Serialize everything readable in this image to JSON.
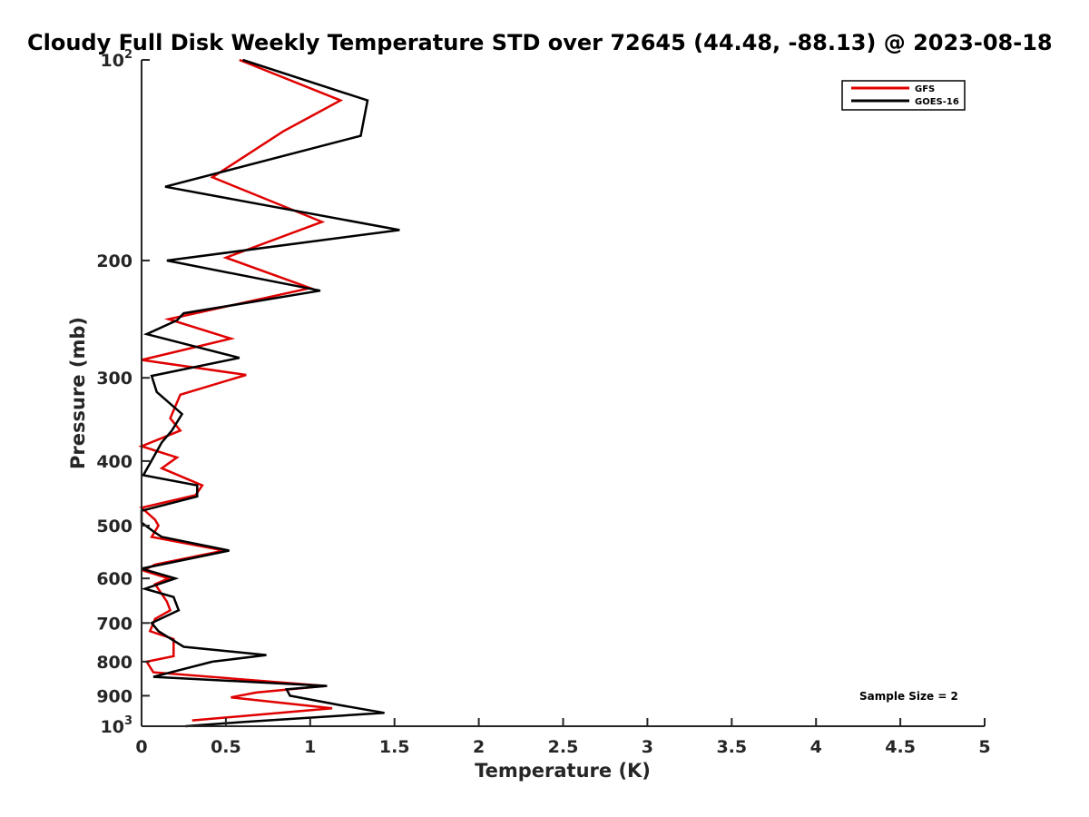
{
  "chart_data": {
    "type": "line",
    "title": "Cloudy Full Disk Weekly Temperature STD over 72645 (44.48, -88.13) @ 2023-08-18",
    "xlabel": "Temperature (K)",
    "ylabel": "Pressure (mb)",
    "xlim": [
      0,
      5
    ],
    "ylim": [
      100,
      1000
    ],
    "y_scale": "log",
    "y_reversed": true,
    "x_ticks": [
      "0",
      "0.5",
      "1",
      "1.5",
      "2",
      "2.5",
      "3",
      "3.5",
      "4",
      "4.5",
      "5"
    ],
    "y_ticks": [
      {
        "value": 100,
        "base": "10",
        "exp": "2"
      },
      {
        "value": 200,
        "label": "200"
      },
      {
        "value": 300,
        "label": "300"
      },
      {
        "value": 400,
        "label": "400"
      },
      {
        "value": 500,
        "label": "500"
      },
      {
        "value": 600,
        "label": "600"
      },
      {
        "value": 700,
        "label": "700"
      },
      {
        "value": 800,
        "label": "800"
      },
      {
        "value": 900,
        "label": "900"
      },
      {
        "value": 1000,
        "base": "10",
        "exp": "3"
      }
    ],
    "legend_position": "top-right",
    "annotation": "Sample Size = 2",
    "series": [
      {
        "name": "GFS",
        "color": "#e00000",
        "points": [
          [
            0.58,
            100
          ],
          [
            1.18,
            115
          ],
          [
            0.84,
            128
          ],
          [
            0.42,
            150
          ],
          [
            1.07,
            175
          ],
          [
            0.5,
            198
          ],
          [
            1.0,
            220
          ],
          [
            0.16,
            245
          ],
          [
            0.53,
            262
          ],
          [
            0.0,
            282
          ],
          [
            0.62,
            297
          ],
          [
            0.23,
            318
          ],
          [
            0.17,
            345
          ],
          [
            0.23,
            360
          ],
          [
            0.0,
            380
          ],
          [
            0.21,
            395
          ],
          [
            0.12,
            410
          ],
          [
            0.36,
            435
          ],
          [
            0.32,
            450
          ],
          [
            0.0,
            470
          ],
          [
            0.08,
            490
          ],
          [
            0.1,
            500
          ],
          [
            0.06,
            520
          ],
          [
            0.49,
            545
          ],
          [
            0.08,
            572
          ],
          [
            0.01,
            584
          ],
          [
            0.16,
            600
          ],
          [
            0.08,
            612
          ],
          [
            0.15,
            650
          ],
          [
            0.17,
            670
          ],
          [
            0.08,
            690
          ],
          [
            0.05,
            720
          ],
          [
            0.19,
            740
          ],
          [
            0.19,
            785
          ],
          [
            0.03,
            800
          ],
          [
            0.05,
            815
          ],
          [
            0.07,
            830
          ],
          [
            1.09,
            870
          ],
          [
            0.68,
            890
          ],
          [
            0.53,
            905
          ],
          [
            1.13,
            940
          ],
          [
            0.3,
            980
          ]
        ]
      },
      {
        "name": "GOES-16",
        "color": "#000000",
        "points": [
          [
            0.6,
            100
          ],
          [
            1.34,
            115
          ],
          [
            1.3,
            130
          ],
          [
            0.14,
            155
          ],
          [
            1.53,
            180
          ],
          [
            0.15,
            200
          ],
          [
            1.06,
            222
          ],
          [
            0.25,
            240
          ],
          [
            0.21,
            246
          ],
          [
            0.03,
            258
          ],
          [
            0.58,
            280
          ],
          [
            0.06,
            298
          ],
          [
            0.09,
            315
          ],
          [
            0.24,
            340
          ],
          [
            0.18,
            360
          ],
          [
            0.12,
            375
          ],
          [
            0.07,
            395
          ],
          [
            0.01,
            420
          ],
          [
            0.33,
            435
          ],
          [
            0.33,
            452
          ],
          [
            0.0,
            475
          ],
          [
            0.0,
            495
          ],
          [
            0.07,
            510
          ],
          [
            0.12,
            520
          ],
          [
            0.52,
            545
          ],
          [
            0.0,
            580
          ],
          [
            0.2,
            600
          ],
          [
            0.02,
            622
          ],
          [
            0.19,
            640
          ],
          [
            0.22,
            670
          ],
          [
            0.06,
            700
          ],
          [
            0.1,
            720
          ],
          [
            0.25,
            760
          ],
          [
            0.74,
            782
          ],
          [
            0.42,
            800
          ],
          [
            0.07,
            843
          ],
          [
            1.1,
            870
          ],
          [
            0.86,
            880
          ],
          [
            0.88,
            900
          ],
          [
            1.18,
            930
          ],
          [
            1.44,
            955
          ],
          [
            0.61,
            985
          ],
          [
            0.26,
            1000
          ]
        ]
      }
    ]
  }
}
